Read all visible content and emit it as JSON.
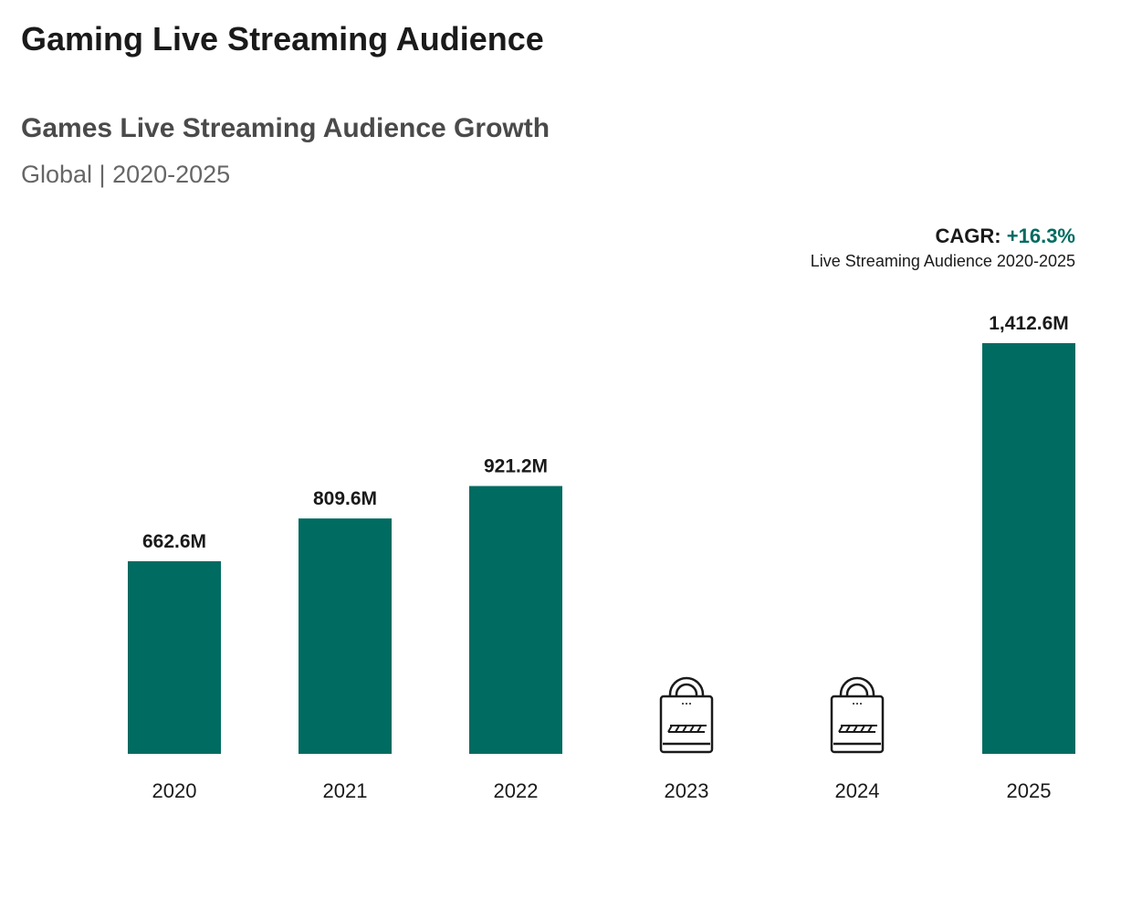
{
  "header": {
    "title": "Gaming Live Streaming Audience"
  },
  "chart_data": {
    "type": "bar",
    "title": "Games Live Streaming Audience Growth",
    "subtitle": "Global | 2020-2025",
    "categories": [
      "2020",
      "2021",
      "2022",
      "2023",
      "2024",
      "2025"
    ],
    "values": [
      662.6,
      809.6,
      921.2,
      null,
      null,
      1412.6
    ],
    "data_labels": [
      "662.6M",
      "809.6M",
      "921.2M",
      "",
      "",
      "1,412.6M"
    ],
    "locked": [
      false,
      false,
      false,
      true,
      true,
      false
    ],
    "ylim": [
      0,
      1412.6
    ],
    "xlabel": "",
    "ylabel": "",
    "grid": false,
    "annotation": {
      "label": "CAGR:",
      "value": "+16.3%",
      "description": "Live Streaming Audience 2020-2025"
    },
    "colors": {
      "bar": "#006b61",
      "accent": "#006b61"
    }
  }
}
